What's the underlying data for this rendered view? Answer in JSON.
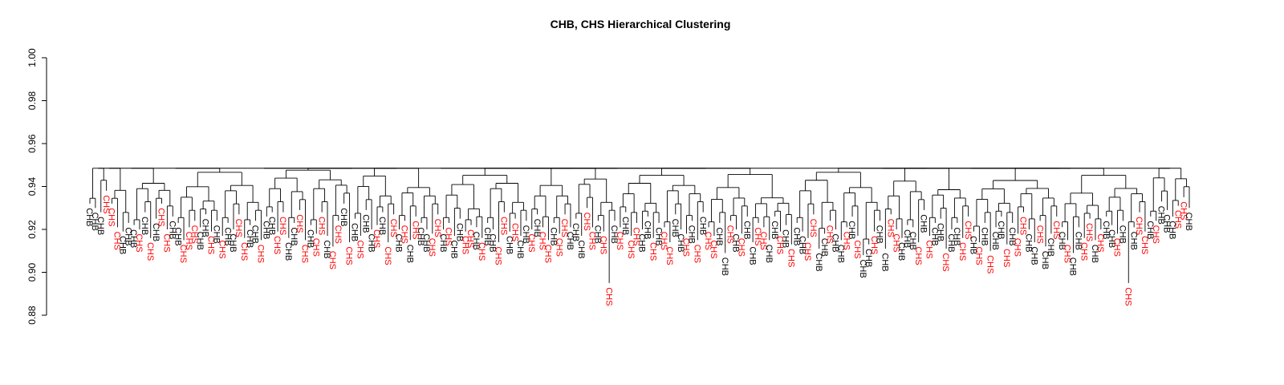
{
  "chart_data": {
    "type": "dendrogram",
    "title": "CHB, CHS Hierarchical Clustering",
    "ylim": [
      0.88,
      1.0
    ],
    "yticks": [
      "0.88",
      "0.90",
      "0.92",
      "0.94",
      "0.96",
      "0.98",
      "1.00"
    ],
    "yticks_values": [
      0.88,
      0.9,
      0.92,
      0.94,
      0.96,
      0.98,
      1.0
    ],
    "grid": false,
    "leaf_groups": [
      "CHB",
      "CHS"
    ],
    "colors": {
      "CHB": "#000000",
      "CHS": "#ff0000"
    },
    "leaves": [
      "CHB",
      "CHB",
      "CHB",
      "CHS",
      "CHS",
      "CHS",
      "CHB",
      "CHB",
      "CHB",
      "CHS",
      "CHB",
      "CHS",
      "CHB",
      "CHS",
      "CHS",
      "CHB",
      "CHB",
      "CHS",
      "CHS",
      "CHS",
      "CHB",
      "CHB",
      "CHS",
      "CHB",
      "CHS",
      "CHB",
      "CHB",
      "CHS",
      "CHS",
      "CHB",
      "CHB",
      "CHS",
      "CHB",
      "CHB",
      "CHS",
      "CHS",
      "CHB",
      "CHB",
      "CHS",
      "CHS",
      "CHB",
      "CHS",
      "CHS",
      "CHB",
      "CHS",
      "CHS",
      "CHB",
      "CHS",
      "CHB",
      "CHS",
      "CHB",
      "CHB",
      "CHS",
      "CHB",
      "CHS",
      "CHS",
      "CHB",
      "CHS",
      "CHB",
      "CHS",
      "CHB",
      "CHB",
      "CHS",
      "CHS",
      "CHB",
      "CHS",
      "CHB",
      "CHB",
      "CHS",
      "CHS",
      "CHB",
      "CHS",
      "CHB",
      "CHB",
      "CHS",
      "CHS",
      "CHB",
      "CHS",
      "CHB",
      "CHB",
      "CHS",
      "CHB",
      "CHS",
      "CHS",
      "CHB",
      "CHS",
      "CHS",
      "CHB",
      "CHB",
      "CHB",
      "CHS",
      "CHS",
      "CHB",
      "CHS",
      "CHS",
      "CHB",
      "CHS",
      "CHB",
      "CHS",
      "CHS",
      "CHB",
      "CHB",
      "CHS",
      "CHB",
      "CHS",
      "CHS",
      "CHB",
      "CHB",
      "CHS",
      "CHB",
      "CHS",
      "CHB",
      "CHS",
      "CHS",
      "CHB",
      "CHB",
      "CHS",
      "CHB",
      "CHS",
      "CHB",
      "CHB",
      "CHS",
      "CHS",
      "CHB",
      "CHB",
      "CHS",
      "CHB",
      "CHS",
      "CHB",
      "CHB",
      "CHS",
      "CHS",
      "CHB",
      "CHB",
      "CHS",
      "CHB",
      "CHB",
      "CHS",
      "CHB",
      "CHS",
      "CHB",
      "CHB",
      "CHS",
      "CHB",
      "CHB",
      "CHS",
      "CHS",
      "CHB",
      "CHB",
      "CHB",
      "CHS",
      "CHB",
      "CHS",
      "CHB",
      "CHB",
      "CHS",
      "CHB",
      "CHB",
      "CHS",
      "CHS",
      "CHB",
      "CHS",
      "CHB",
      "CHS",
      "CHB",
      "CHB",
      "CHS",
      "CHB",
      "CHS",
      "CHS",
      "CHB",
      "CHB",
      "CHS",
      "CHB",
      "CHB",
      "CHS",
      "CHB",
      "CHS",
      "CHB",
      "CHB",
      "CHS",
      "CHS",
      "CHB",
      "CHS",
      "CHB",
      "CHB",
      "CHS",
      "CHB",
      "CHS",
      "CHB",
      "CHS",
      "CHS",
      "CHB",
      "CHS",
      "CHB",
      "CHB",
      "CHB",
      "CHS",
      "CHS",
      "CHB"
    ],
    "leaf_heights": [
      0.93,
      0.928,
      0.926,
      0.936,
      0.93,
      0.919,
      0.917,
      0.921,
      0.92,
      0.918,
      0.926,
      0.914,
      0.923,
      0.93,
      0.918,
      0.924,
      0.921,
      0.913,
      0.919,
      0.922,
      0.919,
      0.925,
      0.917,
      0.922,
      0.915,
      0.921,
      0.918,
      0.925,
      0.914,
      0.92,
      0.922,
      0.913,
      0.924,
      0.926,
      0.917,
      0.926,
      0.914,
      0.921,
      0.927,
      0.913,
      0.92,
      0.916,
      0.926,
      0.915,
      0.91,
      0.922,
      0.93,
      0.912,
      0.923,
      0.915,
      0.927,
      0.918,
      0.92,
      0.926,
      0.912,
      0.925,
      0.918,
      0.922,
      0.913,
      0.924,
      0.921,
      0.918,
      0.916,
      0.925,
      0.918,
      0.921,
      0.915,
      0.923,
      0.917,
      0.92,
      0.919,
      0.914,
      0.921,
      0.918,
      0.912,
      0.926,
      0.917,
      0.923,
      0.915,
      0.922,
      0.918,
      0.925,
      0.919,
      0.913,
      0.921,
      0.916,
      0.925,
      0.919,
      0.923,
      0.915,
      0.928,
      0.919,
      0.922,
      0.917,
      0.893,
      0.922,
      0.919,
      0.926,
      0.915,
      0.921,
      0.918,
      0.924,
      0.914,
      0.921,
      0.919,
      0.912,
      0.925,
      0.918,
      0.916,
      0.922,
      0.913,
      0.926,
      0.919,
      0.915,
      0.921,
      0.907,
      0.922,
      0.918,
      0.916,
      0.924,
      0.912,
      0.921,
      0.919,
      0.913,
      0.924,
      0.917,
      0.92,
      0.911,
      0.921,
      0.917,
      0.914,
      0.925,
      0.909,
      0.916,
      0.922,
      0.918,
      0.913,
      0.919,
      0.924,
      0.915,
      0.906,
      0.911,
      0.917,
      0.922,
      0.909,
      0.925,
      0.918,
      0.914,
      0.92,
      0.919,
      0.912,
      0.927,
      0.915,
      0.921,
      0.923,
      0.909,
      0.918,
      0.921,
      0.914,
      0.924,
      0.917,
      0.912,
      0.921,
      0.908,
      0.919,
      0.924,
      0.911,
      0.921,
      0.916,
      0.926,
      0.918,
      0.912,
      0.922,
      0.91,
      0.916,
      0.924,
      0.919,
      0.913,
      0.907,
      0.919,
      0.914,
      0.923,
      0.913,
      0.918,
      0.924,
      0.92,
      0.916,
      0.922,
      0.893,
      0.919,
      0.926,
      0.917,
      0.924,
      0.922,
      0.931,
      0.927,
      0.924,
      0.929,
      0.933,
      0.928
    ],
    "top_merge_height": 0.9485
  }
}
